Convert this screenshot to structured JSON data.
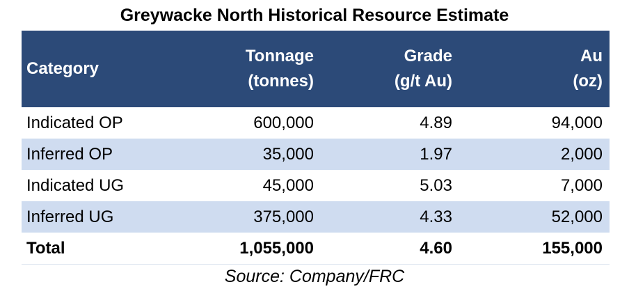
{
  "title": "Greywacke North Historical Resource Estimate",
  "headers": {
    "category": "Category",
    "tonnage": [
      "Tonnage",
      "(tonnes)"
    ],
    "grade": [
      "Grade",
      "(g/t Au)"
    ],
    "au": [
      "Au",
      "(oz)"
    ]
  },
  "rows": [
    {
      "category": "Indicated OP",
      "tonnage": "600,000",
      "grade": "4.89",
      "au": "94,000"
    },
    {
      "category": "Inferred OP",
      "tonnage": "35,000",
      "grade": "1.97",
      "au": "2,000"
    },
    {
      "category": "Indicated UG",
      "tonnage": "45,000",
      "grade": "5.03",
      "au": "7,000"
    },
    {
      "category": "Inferred UG",
      "tonnage": "375,000",
      "grade": "4.33",
      "au": "52,000"
    }
  ],
  "total": {
    "category": "Total",
    "tonnage": "1,055,000",
    "grade": "4.60",
    "au": "155,000"
  },
  "source": "Source: Company/FRC",
  "colors": {
    "header_bg": "#2c4a78",
    "alt_row_bg": "#cfdcf0",
    "header_text": "#ffffff"
  }
}
